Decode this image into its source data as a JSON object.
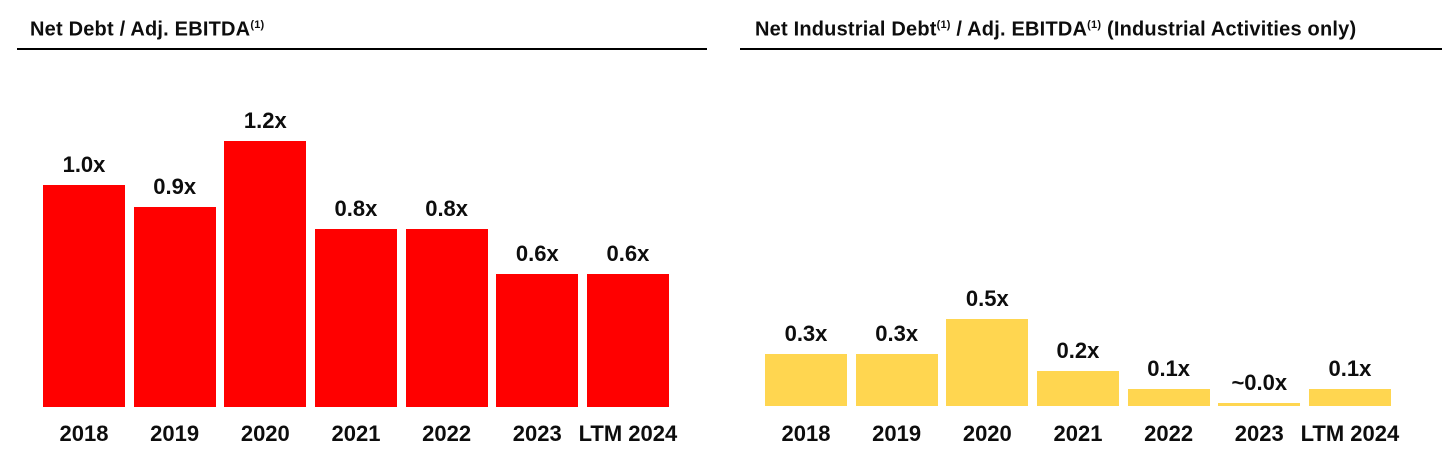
{
  "page": {
    "background_color": "#ffffff",
    "text_color": "#0d0d0d"
  },
  "chart_data": [
    {
      "type": "bar",
      "title": "Net Debt / Adj. EBITDA(1)",
      "title_segments": [
        {
          "text": "Net Debt / Adj. EBITDA"
        },
        {
          "sup": "(1)"
        }
      ],
      "categories": [
        "2018",
        "2019",
        "2020",
        "2021",
        "2022",
        "2023",
        "LTM 2024"
      ],
      "values": [
        1.0,
        0.9,
        1.2,
        0.8,
        0.8,
        0.6,
        0.6
      ],
      "value_labels": [
        "1.0x",
        "0.9x",
        "1.2x",
        "0.8x",
        "0.8x",
        "0.6x",
        "0.6x"
      ],
      "bar_color": "#FF0000",
      "xlabel": "",
      "ylabel": "",
      "ylim": [
        0,
        1.2
      ],
      "grid": false,
      "legend_position": "none",
      "value_labels_position": "above-bars"
    },
    {
      "type": "bar",
      "title": "Net Industrial Debt(1) / Adj. EBITDA(1) (Industrial Activities only)",
      "title_segments": [
        {
          "text": "Net Industrial Debt"
        },
        {
          "sup": "(1)"
        },
        {
          "text": " / Adj. EBITDA"
        },
        {
          "sup": "(1)"
        },
        {
          "text": " (Industrial Activities only)"
        }
      ],
      "categories": [
        "2018",
        "2019",
        "2020",
        "2021",
        "2022",
        "2023",
        "LTM 2024"
      ],
      "values": [
        0.3,
        0.3,
        0.5,
        0.2,
        0.1,
        0.0,
        0.1
      ],
      "value_labels": [
        "0.3x",
        "0.3x",
        "0.5x",
        "0.2x",
        "0.1x",
        "~0.0x",
        "0.1x"
      ],
      "bar_color": "#FFD650",
      "xlabel": "",
      "ylabel": "",
      "ylim": [
        0,
        0.5
      ],
      "grid": false,
      "legend_position": "none",
      "value_labels_position": "above-bars"
    }
  ]
}
